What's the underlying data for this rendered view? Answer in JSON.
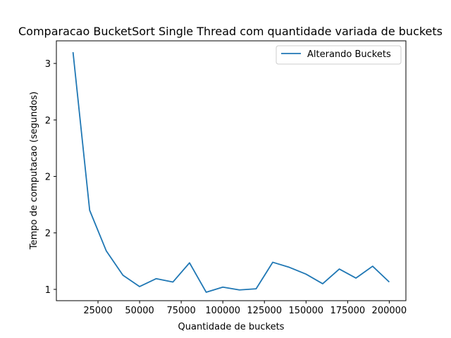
{
  "chart_data": {
    "type": "line",
    "title": "Comparacao BucketSort Single Thread com quantidade variada de buckets",
    "xlabel": "Quantidade de buckets",
    "ylabel": "Tempo de computacao (segundos)",
    "xlim": [
      0,
      210000
    ],
    "ylim": [
      0.9,
      3.2
    ],
    "xticks": [
      {
        "value": 25000,
        "label": "25000"
      },
      {
        "value": 50000,
        "label": "50000"
      },
      {
        "value": 75000,
        "label": "75000"
      },
      {
        "value": 100000,
        "label": "100000"
      },
      {
        "value": 125000,
        "label": "125000"
      },
      {
        "value": 150000,
        "label": "150000"
      },
      {
        "value": 175000,
        "label": "175000"
      },
      {
        "value": 200000,
        "label": "200000"
      }
    ],
    "yticks": [
      {
        "value": 1.0,
        "label": "1"
      },
      {
        "value": 1.5,
        "label": "2"
      },
      {
        "value": 2.0,
        "label": "2"
      },
      {
        "value": 2.5,
        "label": "2"
      },
      {
        "value": 3.0,
        "label": "3"
      }
    ],
    "legend_position": "top-right",
    "grid": false,
    "series": [
      {
        "name": "Alterando Buckets",
        "color": "#1f77b4",
        "x": [
          10000,
          20000,
          30000,
          40000,
          50000,
          60000,
          70000,
          80000,
          90000,
          100000,
          110000,
          120000,
          130000,
          140000,
          150000,
          160000,
          170000,
          180000,
          190000,
          200000
        ],
        "y": [
          3.1,
          1.7,
          1.34,
          1.125,
          1.025,
          1.095,
          1.065,
          1.235,
          0.975,
          1.02,
          0.995,
          1.005,
          1.24,
          1.195,
          1.135,
          1.05,
          1.18,
          1.1,
          1.205,
          1.065
        ]
      }
    ]
  }
}
